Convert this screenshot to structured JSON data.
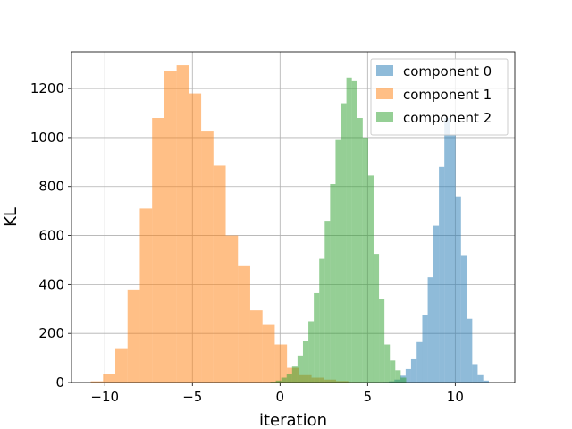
{
  "chart_data": {
    "type": "histogram",
    "xlabel": "iteration",
    "ylabel": "KL",
    "xlim": [
      -11.9,
      13.4
    ],
    "ylim": [
      0,
      1350
    ],
    "x_ticks": [
      -10,
      -5,
      0,
      5,
      10
    ],
    "x_tick_labels": [
      "−10",
      "−5",
      "0",
      "5",
      "10"
    ],
    "y_ticks": [
      0,
      200,
      400,
      600,
      800,
      1000,
      1200
    ],
    "y_tick_labels": [
      "0",
      "200",
      "400",
      "600",
      "800",
      "1000",
      "1200"
    ],
    "grid": true,
    "legend_position": "top-right",
    "series": [
      {
        "name": "component 0",
        "color": "#1f77b4",
        "alpha": 0.5,
        "bins": [
          [
            5.9,
            6.22,
            2
          ],
          [
            6.22,
            6.53,
            5
          ],
          [
            6.53,
            6.85,
            12
          ],
          [
            6.85,
            7.17,
            28
          ],
          [
            7.17,
            7.48,
            55
          ],
          [
            7.48,
            7.8,
            95
          ],
          [
            7.8,
            8.12,
            165
          ],
          [
            8.12,
            8.43,
            275
          ],
          [
            8.43,
            8.75,
            430
          ],
          [
            8.75,
            9.07,
            640
          ],
          [
            9.07,
            9.38,
            880
          ],
          [
            9.38,
            9.7,
            1080
          ],
          [
            9.7,
            10.02,
            1010
          ],
          [
            10.02,
            10.33,
            760
          ],
          [
            10.33,
            10.65,
            520
          ],
          [
            10.65,
            10.97,
            260
          ],
          [
            10.97,
            11.28,
            75
          ],
          [
            11.28,
            11.6,
            30
          ],
          [
            11.6,
            11.92,
            8
          ]
        ]
      },
      {
        "name": "component 1",
        "color": "#ff7f0e",
        "alpha": 0.5,
        "bins": [
          [
            -10.8,
            -10.1,
            5
          ],
          [
            -10.1,
            -9.4,
            35
          ],
          [
            -9.4,
            -8.7,
            140
          ],
          [
            -8.7,
            -8.0,
            380
          ],
          [
            -8.0,
            -7.3,
            710
          ],
          [
            -7.3,
            -6.6,
            1080
          ],
          [
            -6.6,
            -5.9,
            1270
          ],
          [
            -5.9,
            -5.2,
            1295
          ],
          [
            -5.2,
            -4.5,
            1180
          ],
          [
            -4.5,
            -3.8,
            1025
          ],
          [
            -3.8,
            -3.1,
            885
          ],
          [
            -3.1,
            -2.4,
            600
          ],
          [
            -2.4,
            -1.7,
            475
          ],
          [
            -1.7,
            -1.0,
            295
          ],
          [
            -1.0,
            -0.3,
            235
          ],
          [
            -0.3,
            0.4,
            155
          ],
          [
            0.4,
            1.1,
            60
          ],
          [
            1.1,
            1.8,
            30
          ],
          [
            1.8,
            2.5,
            20
          ],
          [
            2.5,
            3.2,
            12
          ],
          [
            3.2,
            3.9,
            6
          ],
          [
            3.9,
            4.6,
            2
          ]
        ]
      },
      {
        "name": "component 2",
        "color": "#2ca02c",
        "alpha": 0.5,
        "bins": [
          [
            -0.55,
            -0.24,
            3
          ],
          [
            -0.24,
            0.07,
            8
          ],
          [
            0.07,
            0.38,
            20
          ],
          [
            0.38,
            0.69,
            35
          ],
          [
            0.69,
            1.0,
            65
          ],
          [
            1.0,
            1.31,
            110
          ],
          [
            1.31,
            1.62,
            170
          ],
          [
            1.62,
            1.93,
            250
          ],
          [
            1.93,
            2.24,
            365
          ],
          [
            2.24,
            2.55,
            505
          ],
          [
            2.55,
            2.86,
            660
          ],
          [
            2.86,
            3.17,
            810
          ],
          [
            3.17,
            3.48,
            990
          ],
          [
            3.48,
            3.79,
            1140
          ],
          [
            3.79,
            4.1,
            1245
          ],
          [
            4.1,
            4.41,
            1230
          ],
          [
            4.41,
            4.72,
            1080
          ],
          [
            4.72,
            5.03,
            1000
          ],
          [
            5.03,
            5.34,
            845
          ],
          [
            5.34,
            5.65,
            525
          ],
          [
            5.65,
            5.96,
            340
          ],
          [
            5.96,
            6.27,
            155
          ],
          [
            6.27,
            6.58,
            90
          ],
          [
            6.58,
            6.89,
            50
          ],
          [
            6.89,
            7.2,
            20
          ]
        ]
      }
    ]
  }
}
